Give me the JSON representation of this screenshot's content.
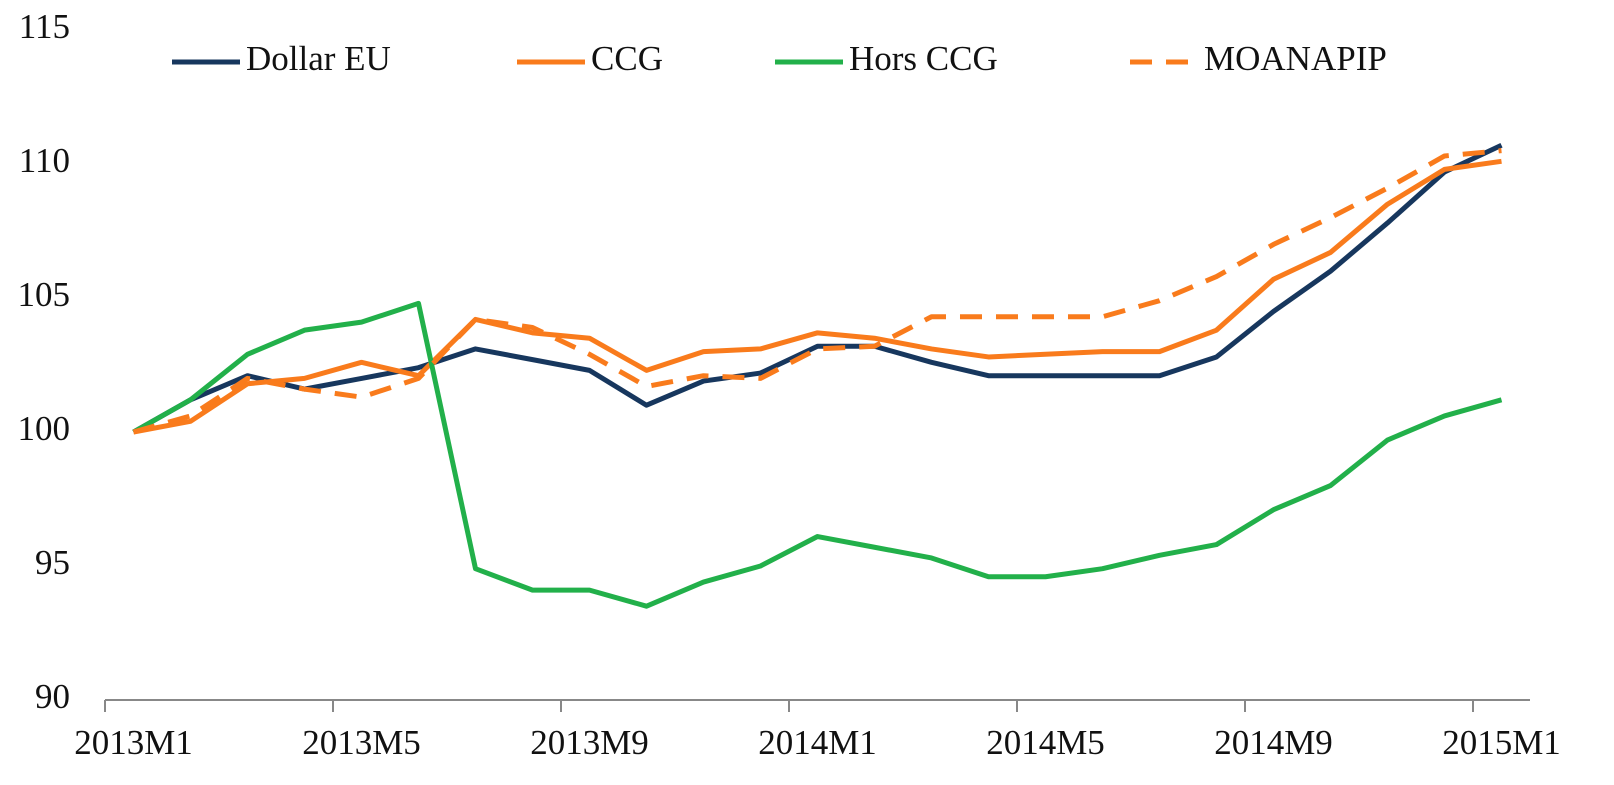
{
  "chart_data": {
    "type": "line",
    "categories": [
      "2013M1",
      null,
      null,
      null,
      "2013M5",
      null,
      null,
      null,
      "2013M9",
      null,
      null,
      null,
      "2014M1",
      null,
      null,
      null,
      "2014M5",
      null,
      null,
      null,
      "2014M9",
      null,
      null,
      null,
      "2015M1"
    ],
    "series": [
      {
        "name": "Dollar EU",
        "color": "#17375e",
        "dashed": false,
        "values": [
          100,
          101.2,
          102.1,
          101.6,
          102.0,
          102.4,
          103.1,
          102.7,
          102.3,
          101.0,
          101.9,
          102.2,
          103.2,
          103.2,
          102.6,
          102.1,
          102.1,
          102.1,
          102.1,
          102.8,
          104.5,
          106.0,
          107.8,
          109.7,
          110.7
        ]
      },
      {
        "name": "CCG",
        "color": "#f97b1c",
        "dashed": false,
        "values": [
          100,
          100.4,
          101.8,
          102.0,
          102.6,
          102.1,
          104.2,
          103.7,
          103.5,
          102.3,
          103.0,
          103.1,
          103.7,
          103.5,
          103.1,
          102.8,
          102.9,
          103.0,
          103.0,
          103.8,
          105.7,
          106.7,
          108.5,
          109.8,
          110.1
        ]
      },
      {
        "name": "Hors CCG",
        "color": "#22b04a",
        "dashed": false,
        "values": [
          100,
          101.2,
          102.9,
          103.8,
          104.1,
          104.8,
          94.9,
          94.1,
          94.1,
          93.5,
          94.4,
          95.0,
          96.1,
          95.7,
          95.3,
          94.6,
          94.6,
          94.9,
          95.4,
          95.8,
          97.1,
          98.0,
          99.7,
          100.6,
          101.2
        ]
      },
      {
        "name": "MOANAPIP",
        "color": "#f97b1c",
        "dashed": true,
        "values": [
          100,
          100.6,
          102.0,
          101.6,
          101.3,
          102.0,
          104.2,
          103.9,
          102.9,
          101.7,
          102.1,
          102.0,
          103.1,
          103.2,
          104.3,
          104.3,
          104.3,
          104.3,
          104.9,
          105.8,
          107.0,
          108.0,
          109.1,
          110.3,
          110.5
        ]
      }
    ],
    "ylim": [
      90,
      115
    ],
    "yticks": [
      90,
      95,
      100,
      105,
      110,
      115
    ],
    "grid": false,
    "legend": "top"
  }
}
